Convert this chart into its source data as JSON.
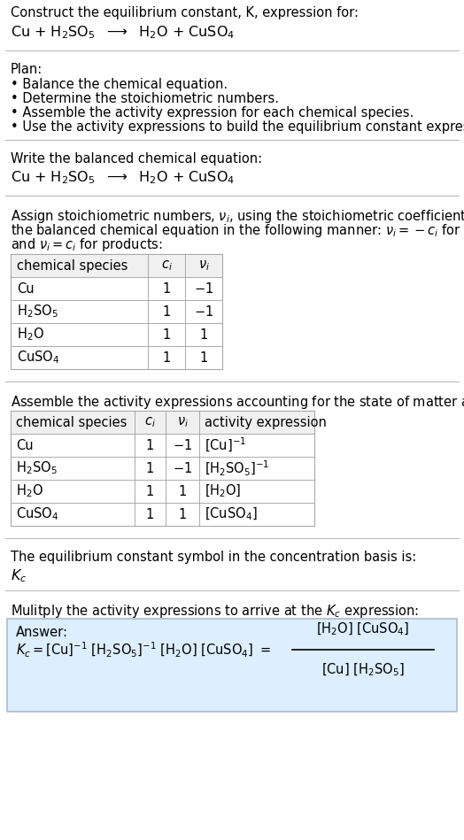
{
  "title_line1": "Construct the equilibrium constant, K, expression for:",
  "plan_header": "Plan:",
  "plan_items": [
    "• Balance the chemical equation.",
    "• Determine the stoichiometric numbers.",
    "• Assemble the activity expression for each chemical species.",
    "• Use the activity expressions to build the equilibrium constant expression."
  ],
  "balanced_header": "Write the balanced chemical equation:",
  "kc_text": "The equilibrium constant symbol in the concentration basis is:",
  "multiply_text": "Mulitply the activity expressions to arrive at the $K_c$ expression:",
  "answer_label": "Answer:",
  "bg_color": "#ffffff",
  "answer_bg": "#ddeeff",
  "separator_color": "#bbbbbb",
  "font_size": 10.5
}
